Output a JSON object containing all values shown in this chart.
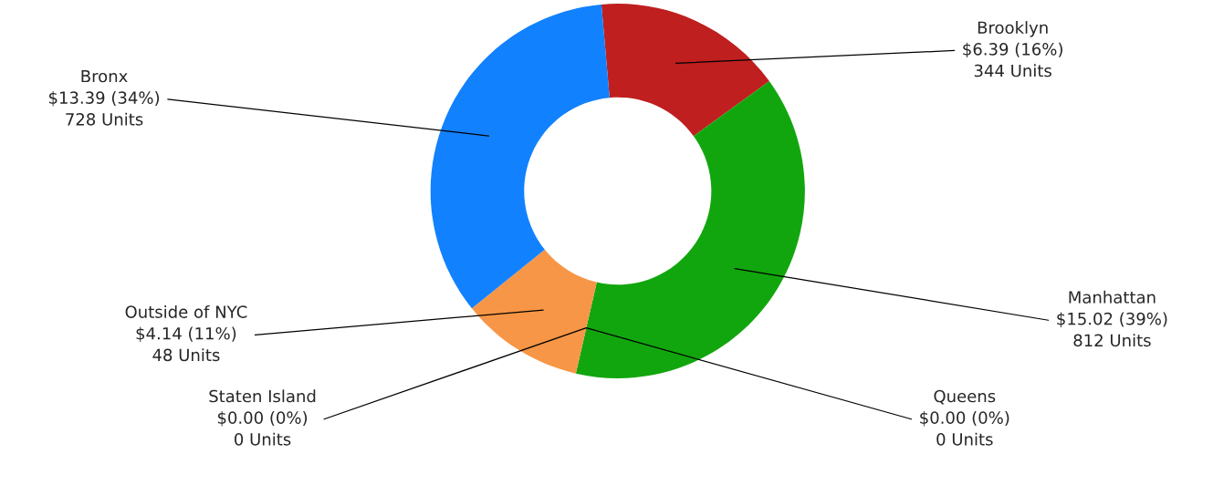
{
  "chart_data": {
    "type": "donut",
    "categories": [
      "Brooklyn",
      "Manhattan",
      "Queens",
      "Staten Island",
      "Outside of NYC",
      "Bronx"
    ],
    "values": [
      6.39,
      15.02,
      0,
      0,
      4.14,
      13.39
    ],
    "colors": [
      "#bf1f1f",
      "#12a60e",
      "#7f7f7f",
      "#4f81bd",
      "#f79646",
      "#1281fe"
    ],
    "value_labels": [
      "$6.39 (16%)\n344 Units",
      "$15.02 (39%)\n812 Units",
      "$0.00 (0%)\n0 Units",
      "$0.00 (0%)\n0 Units",
      "$4.14 (11%)\n48 Units",
      "$13.39 (34%)\n728 Units"
    ]
  }
}
